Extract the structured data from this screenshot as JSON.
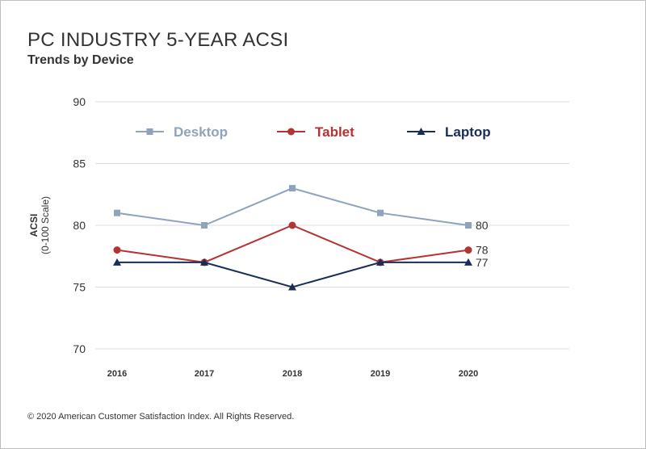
{
  "chart_data": {
    "type": "line",
    "title": "PC INDUSTRY 5-YEAR ACSI",
    "subtitle": "Trends by Device",
    "ylabel": "ACSI",
    "ylabel_sub": "(0-100 Scale)",
    "xlabel": "",
    "ylim": [
      70,
      90
    ],
    "yticks": [
      70,
      75,
      80,
      85,
      90
    ],
    "categories": [
      "2016",
      "2017",
      "2018",
      "2019",
      "2020"
    ],
    "grid": true,
    "legend_placement": "top",
    "series": [
      {
        "name": "Desktop",
        "values": [
          81,
          80,
          83,
          81,
          80
        ],
        "color": "#8fa3ba",
        "marker": "square",
        "end_label": "80"
      },
      {
        "name": "Tablet",
        "values": [
          78,
          77,
          80,
          77,
          78
        ],
        "color": "#b23434",
        "marker": "circle",
        "end_label": "78"
      },
      {
        "name": "Laptop",
        "values": [
          77,
          77,
          75,
          77,
          77
        ],
        "color": "#1a2d57",
        "marker": "triangle",
        "end_label": "77"
      }
    ]
  },
  "footer": "© 2020 American Customer Satisfaction Index. All Rights Reserved."
}
